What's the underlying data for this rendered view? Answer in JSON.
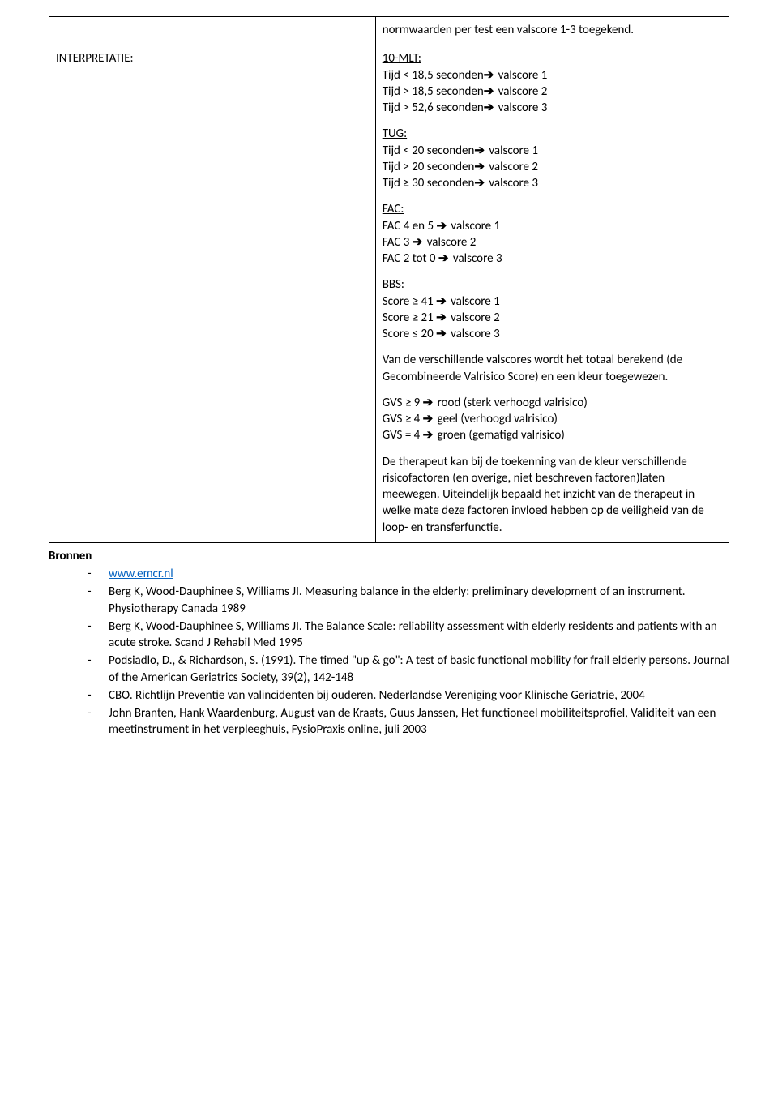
{
  "table": {
    "row0": {
      "left": "",
      "right_p1": "normwaarden per test een valscore 1-3 toegekend."
    },
    "row1": {
      "left": "INTERPRETATIE:",
      "right": {
        "mlt": {
          "title": "10-MLT:",
          "l1": "Tijd < 18,5 seconden",
          "r1": " valscore 1",
          "l2": "Tijd > 18,5 seconden",
          "r2": " valscore 2",
          "l3": "Tijd > 52,6 seconden",
          "r3": " valscore 3"
        },
        "tug": {
          "title": "TUG:",
          "l1": "Tijd < 20 seconden",
          "r1": " valscore 1",
          "l2": "Tijd > 20 seconden",
          "r2": " valscore 2",
          "l3": "Tijd ≥ 30 seconden",
          "r3": " valscore 3"
        },
        "fac": {
          "title": "FAC:",
          "l1": "FAC 4 en 5 ",
          "r1": " valscore 1",
          "l2": "FAC 3 ",
          "r2": " valscore 2",
          "l3": "FAC 2 tot 0 ",
          "r3": " valscore 3"
        },
        "bbs": {
          "title": "BBS:",
          "l1": "Score ≥ 41 ",
          "r1": " valscore 1",
          "l2": "Score ≥ 21 ",
          "r2": " valscore 2",
          "l3": "Score ≤ 20 ",
          "r3": " valscore 3"
        },
        "note1": "Van de verschillende valscores wordt het totaal berekend (de Gecombineerde Valrisico Score) en een kleur toegewezen.",
        "gvs": {
          "l1": "GVS ≥ 9 ",
          "r1": " rood (sterk verhoogd valrisico)",
          "l2": "GVS ≥ 4 ",
          "r2": " geel (verhoogd valrisico)",
          "l3": "GVS = 4 ",
          "r3": " groen (gematigd valrisico)"
        },
        "note2": "De therapeut kan bij de toekenning van de kleur verschillende risicofactoren (en overige, niet beschreven factoren)laten meewegen. Uiteindelijk bepaald het inzicht van de therapeut in welke mate deze factoren invloed hebben op de veiligheid van de loop- en transferfunctie."
      }
    }
  },
  "bronnen": {
    "heading": "Bronnen",
    "items": {
      "0": {
        "link_text": "www.emcr.nl"
      },
      "1": {
        "text": "Berg K, Wood-Dauphinee S, Williams JI. Measuring balance in the elderly: preliminary development of an instrument. Physiotherapy Canada 1989"
      },
      "2": {
        "text": "Berg K, Wood-Dauphinee S, Williams JI. The Balance Scale: reliability assessment with elderly residents and patients with an acute stroke. Scand J Rehabil Med 1995"
      },
      "3": {
        "text": "Podsiadlo, D., & Richardson, S. (1991). The timed \"up & go\": A test of basic functional mobility for frail elderly persons. Journal of the American Geriatrics Society, 39(2), 142-148"
      },
      "4": {
        "text": "CBO. Richtlijn Preventie van valincidenten bij ouderen. Nederlandse Vereniging voor Klinische Geriatrie, 2004"
      },
      "5": {
        "text": "John Branten, Hank Waardenburg, August van de Kraats, Guus Janssen, Het functioneel mobiliteitsprofiel, Validiteit van een meetinstrument in het verpleeghuis, FysioPraxis online, juli 2003"
      }
    }
  },
  "arrow": "➔"
}
